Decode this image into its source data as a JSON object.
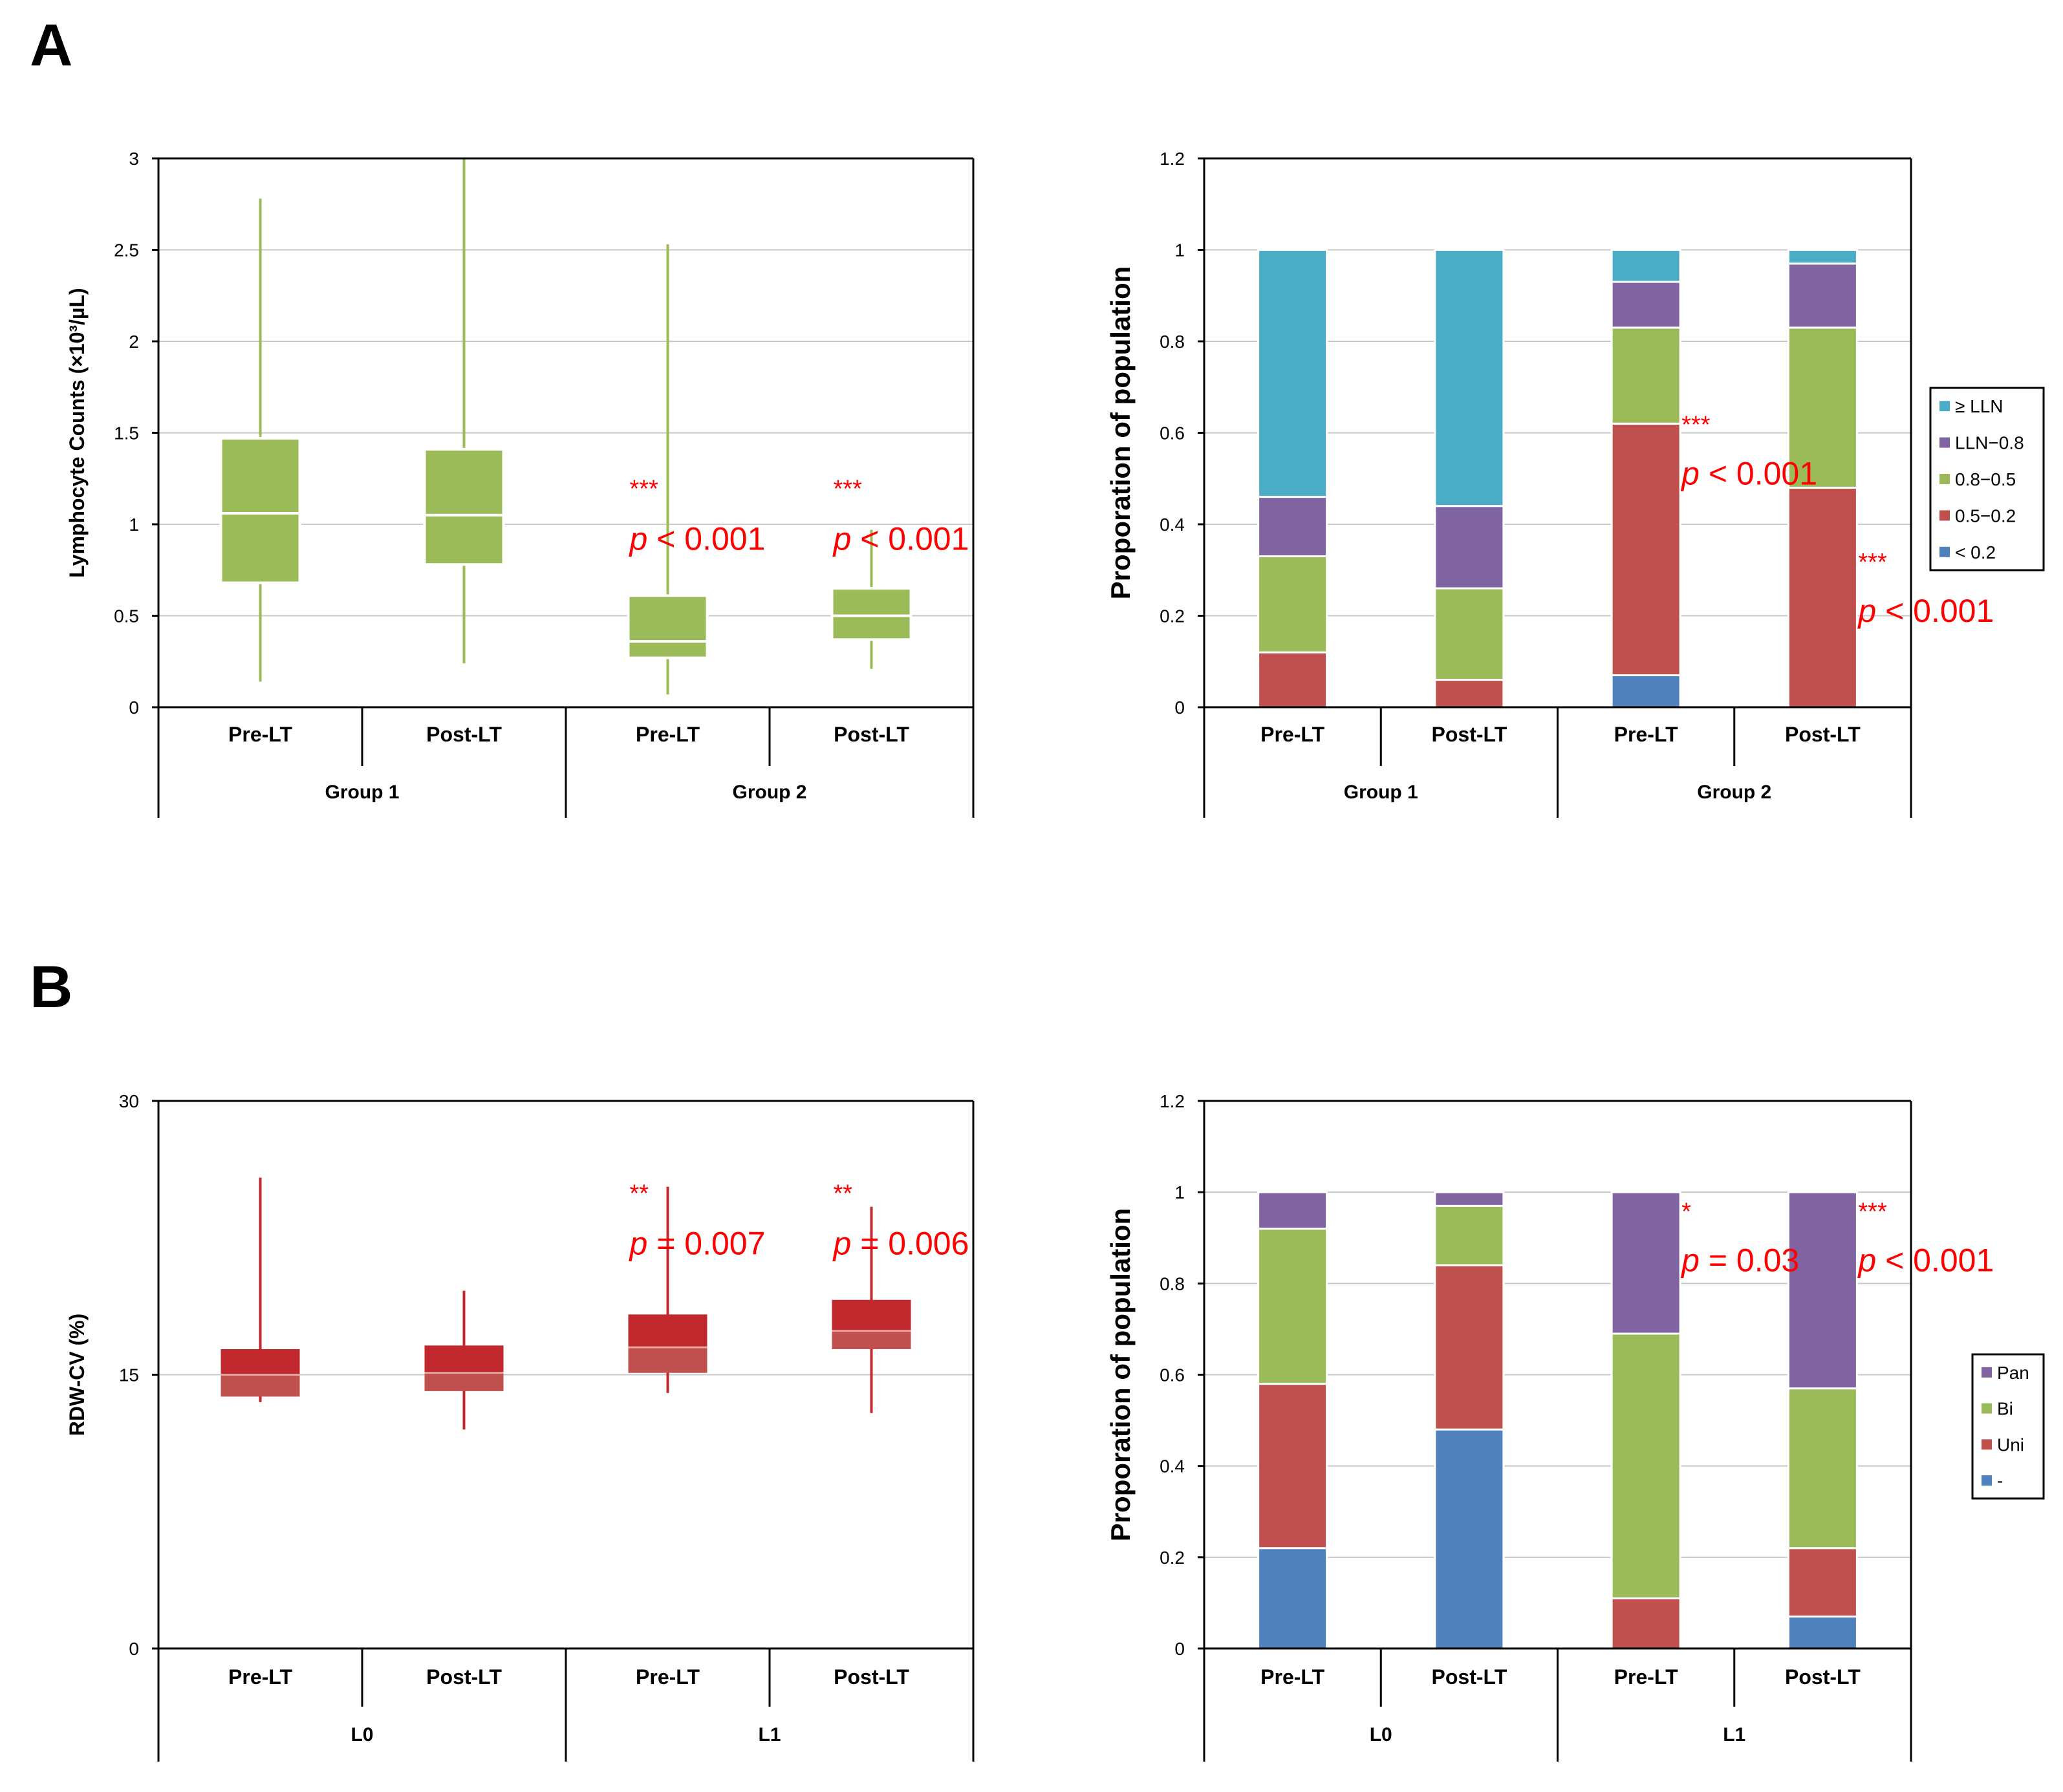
{
  "panel_labels": [
    "A",
    "B"
  ],
  "colors": {
    "green": "#9BBB59",
    "red_dark": "#C0282D",
    "red_light": "#C0504D",
    "blue": "#4F81BD",
    "red_seg": "#C0504D",
    "green_seg": "#9BBB59",
    "purple": "#8064A2",
    "cyan": "#4BACC6",
    "annot": "#FF0000",
    "grid": "#C8C8C8"
  },
  "chart_data": [
    {
      "id": "A-left",
      "type": "box",
      "ylabel": "Lymphocyte Counts (×10³/µL)",
      "ylim": [
        0,
        3
      ],
      "yticks": [
        "0",
        "0.5",
        "1",
        "1.5",
        "2",
        "2.5",
        "3"
      ],
      "ytick_values": [
        0,
        0.5,
        1,
        1.5,
        2,
        2.5,
        3
      ],
      "categories": [
        "Pre-LT",
        "Post-LT",
        "Pre-LT",
        "Post-LT"
      ],
      "groups": [
        "Group 1",
        "Group 2"
      ],
      "boxes": [
        {
          "min": 0.14,
          "q1": 0.68,
          "median": 1.06,
          "q3": 1.47,
          "max": 2.78
        },
        {
          "min": 0.24,
          "q1": 0.78,
          "median": 1.05,
          "q3": 1.41,
          "max": 3.0
        },
        {
          "min": 0.07,
          "q1": 0.27,
          "median": 0.36,
          "q3": 0.61,
          "max": 2.53
        },
        {
          "min": 0.21,
          "q1": 0.37,
          "median": 0.5,
          "q3": 0.65,
          "max": 0.97
        }
      ],
      "annotations": [
        {
          "stars": "***",
          "text": "p < 0.001",
          "pos": "box-3"
        },
        {
          "stars": "***",
          "text": "p < 0.001",
          "pos": "box-4"
        }
      ]
    },
    {
      "id": "A-right",
      "type": "stacked-bar",
      "ylabel": "Proporation of population",
      "ylim": [
        0,
        1.2
      ],
      "yticks": [
        "0",
        "0.2",
        "0.4",
        "0.6",
        "0.8",
        "1",
        "1.2"
      ],
      "ytick_values": [
        0,
        0.2,
        0.4,
        0.6,
        0.8,
        1,
        1.2
      ],
      "categories": [
        "Pre-LT",
        "Post-LT",
        "Pre-LT",
        "Post-LT"
      ],
      "groups": [
        "Group 1",
        "Group 2"
      ],
      "series": [
        {
          "name": "< 0.2",
          "color": "#4F81BD",
          "values": [
            0,
            0,
            0.07,
            0
          ]
        },
        {
          "name": "0.5−0.2",
          "color": "#C0504D",
          "values": [
            0.12,
            0.06,
            0.55,
            0.48
          ]
        },
        {
          "name": "0.8−0.5",
          "color": "#9BBB59",
          "values": [
            0.21,
            0.2,
            0.21,
            0.35
          ]
        },
        {
          "name": "LLN−0.8",
          "color": "#8064A2",
          "values": [
            0.13,
            0.18,
            0.1,
            0.14
          ]
        },
        {
          "name": "≥ LLN",
          "color": "#4BACC6",
          "values": [
            0.54,
            0.56,
            0.07,
            0.03
          ]
        }
      ],
      "legend_order": [
        "≥ LLN",
        "LLN−0.8",
        "0.8−0.5",
        "0.5−0.2",
        "< 0.2"
      ],
      "legend": "right",
      "annotations": [
        {
          "stars": "***",
          "text": "p < 0.001",
          "pos": "bar-3"
        },
        {
          "stars": "***",
          "text": "p < 0.001",
          "pos": "bar-4"
        }
      ]
    },
    {
      "id": "B-left",
      "type": "box",
      "ylabel": "RDW-CV (%)",
      "ylim": [
        0,
        30
      ],
      "yticks": [
        "0",
        "15",
        "30"
      ],
      "ytick_values": [
        0,
        15,
        30
      ],
      "categories": [
        "Pre-LT",
        "Post-LT",
        "Pre-LT",
        "Post-LT"
      ],
      "groups": [
        "L0",
        "L1"
      ],
      "boxes": [
        {
          "min": 13.5,
          "q1": 13.8,
          "median": 15.0,
          "q3": 16.4,
          "max": 25.8
        },
        {
          "min": 12.0,
          "q1": 14.1,
          "median": 15.1,
          "q3": 16.6,
          "max": 19.6
        },
        {
          "min": 14.0,
          "q1": 15.1,
          "median": 16.5,
          "q3": 18.3,
          "max": 25.3
        },
        {
          "min": 12.9,
          "q1": 16.4,
          "median": 17.4,
          "q3": 19.1,
          "max": 24.2
        }
      ],
      "annotations": [
        {
          "stars": "**",
          "text": "p = 0.007",
          "pos": "box-3"
        },
        {
          "stars": "**",
          "text": "p = 0.006",
          "pos": "box-4"
        }
      ]
    },
    {
      "id": "B-right",
      "type": "stacked-bar",
      "ylabel": "Proporation of population",
      "ylim": [
        0,
        1.2
      ],
      "yticks": [
        "0",
        "0.2",
        "0.4",
        "0.6",
        "0.8",
        "1",
        "1.2"
      ],
      "ytick_values": [
        0,
        0.2,
        0.4,
        0.6,
        0.8,
        1,
        1.2
      ],
      "categories": [
        "Pre-LT",
        "Post-LT",
        "Pre-LT",
        "Post-LT"
      ],
      "groups": [
        "L0",
        "L1"
      ],
      "series": [
        {
          "name": "-",
          "color": "#4F81BD",
          "values": [
            0.22,
            0.48,
            0,
            0.07
          ]
        },
        {
          "name": "Uni",
          "color": "#C0504D",
          "values": [
            0.36,
            0.36,
            0.11,
            0.15
          ]
        },
        {
          "name": "Bi",
          "color": "#9BBB59",
          "values": [
            0.34,
            0.13,
            0.58,
            0.35
          ]
        },
        {
          "name": "Pan",
          "color": "#8064A2",
          "values": [
            0.08,
            0.03,
            0.31,
            0.43
          ]
        }
      ],
      "legend_order": [
        "Pan",
        "Bi",
        "Uni",
        "-"
      ],
      "legend": "right",
      "annotations": [
        {
          "stars": "*",
          "text": "p = 0.03",
          "pos": "bar-3"
        },
        {
          "stars": "***",
          "text": "p < 0.001",
          "pos": "bar-4"
        }
      ]
    }
  ]
}
